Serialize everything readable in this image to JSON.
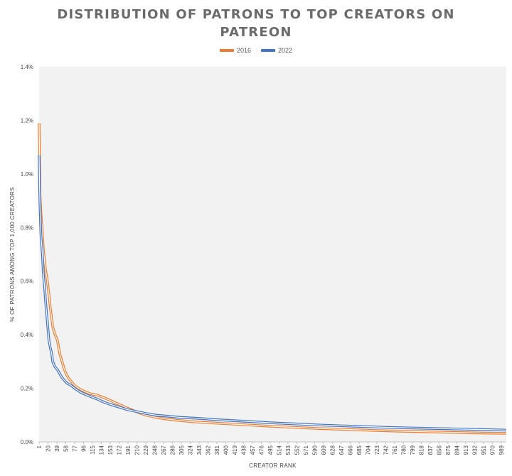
{
  "chart_data": {
    "type": "line",
    "title_lines": [
      "DISTRIBUTION OF PATRONS TO TOP CREATORS ON",
      "PATREON"
    ],
    "xlabel": "CREATOR RANK",
    "ylabel": "% OF PATRONS AMONG TOP 1,000 CREATORS",
    "xlim": [
      1,
      1000
    ],
    "ylim": [
      0,
      1.4
    ],
    "y_ticks": [
      "0.0%",
      "0.2%",
      "0.4%",
      "0.6%",
      "0.8%",
      "1.0%",
      "1.2%",
      "1.4%"
    ],
    "x_ticks": [
      "1",
      "20",
      "39",
      "58",
      "77",
      "96",
      "115",
      "134",
      "153",
      "172",
      "191",
      "210",
      "229",
      "248",
      "267",
      "286",
      "305",
      "324",
      "343",
      "362",
      "381",
      "400",
      "419",
      "438",
      "457",
      "476",
      "495",
      "514",
      "533",
      "552",
      "571",
      "590",
      "609",
      "628",
      "647",
      "666",
      "685",
      "704",
      "723",
      "742",
      "761",
      "780",
      "799",
      "818",
      "837",
      "856",
      "875",
      "894",
      "913",
      "932",
      "951",
      "970",
      "989"
    ],
    "legend_position": "top-center",
    "grid": false,
    "series": [
      {
        "name": "2016",
        "color": "#ed7d31",
        "x": [
          1,
          2,
          3,
          5,
          8,
          10,
          13,
          15,
          18,
          20,
          22,
          25,
          28,
          30,
          35,
          40,
          45,
          50,
          55,
          60,
          65,
          70,
          77,
          85,
          96,
          110,
          125,
          140,
          153,
          172,
          191,
          210,
          229,
          250,
          270,
          300,
          340,
          380,
          420,
          460,
          500,
          550,
          600,
          650,
          700,
          750,
          800,
          850,
          900,
          950,
          1000
        ],
        "y": [
          1.19,
          1.05,
          0.92,
          0.85,
          0.78,
          0.72,
          0.67,
          0.64,
          0.61,
          0.58,
          0.55,
          0.5,
          0.46,
          0.43,
          0.4,
          0.38,
          0.33,
          0.3,
          0.27,
          0.25,
          0.235,
          0.225,
          0.21,
          0.2,
          0.19,
          0.18,
          0.175,
          0.165,
          0.155,
          0.14,
          0.125,
          0.112,
          0.1,
          0.092,
          0.086,
          0.08,
          0.074,
          0.07,
          0.066,
          0.062,
          0.058,
          0.054,
          0.05,
          0.047,
          0.044,
          0.041,
          0.039,
          0.037,
          0.035,
          0.033,
          0.032
        ]
      },
      {
        "name": "2022",
        "color": "#4472c4",
        "x": [
          1,
          2,
          3,
          5,
          8,
          10,
          13,
          15,
          18,
          20,
          22,
          25,
          28,
          30,
          35,
          40,
          45,
          50,
          55,
          60,
          65,
          70,
          77,
          85,
          96,
          110,
          125,
          140,
          153,
          172,
          191,
          210,
          229,
          250,
          270,
          300,
          340,
          380,
          420,
          460,
          500,
          550,
          600,
          650,
          700,
          750,
          800,
          850,
          900,
          950,
          1000
        ],
        "y": [
          1.07,
          0.95,
          0.87,
          0.77,
          0.7,
          0.63,
          0.57,
          0.52,
          0.46,
          0.42,
          0.38,
          0.35,
          0.33,
          0.3,
          0.28,
          0.27,
          0.255,
          0.24,
          0.23,
          0.22,
          0.215,
          0.21,
          0.2,
          0.19,
          0.18,
          0.17,
          0.16,
          0.148,
          0.14,
          0.13,
          0.12,
          0.113,
          0.106,
          0.1,
          0.097,
          0.092,
          0.088,
          0.083,
          0.079,
          0.075,
          0.071,
          0.067,
          0.063,
          0.06,
          0.057,
          0.054,
          0.052,
          0.05,
          0.048,
          0.046,
          0.044
        ]
      }
    ]
  }
}
